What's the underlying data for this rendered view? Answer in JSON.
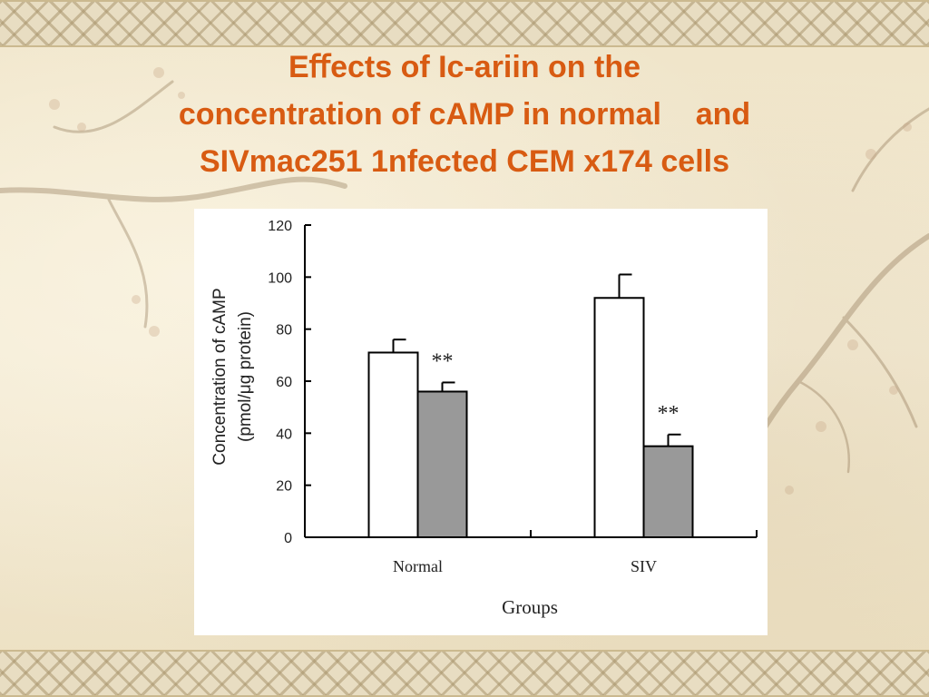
{
  "slide": {
    "title_lines": [
      "Eﬀects of Ic-ariin on the",
      "concentration of cAMP in normal    and",
      "SIVmac251 1nfected CEM x174 cells"
    ],
    "title_color": "#d85b12"
  },
  "chart_data": {
    "type": "bar",
    "categories": [
      "Normal",
      "SIV"
    ],
    "series": [
      {
        "values": [
          71,
          92
        ],
        "errors": [
          5,
          9
        ],
        "color": "#ffffff"
      },
      {
        "values": [
          56,
          35
        ],
        "errors": [
          3.5,
          4.5
        ],
        "color": "#999999",
        "annotations": [
          "**",
          "**"
        ]
      }
    ],
    "xlabel": "Groups",
    "ylabel": [
      "Concentration of cAMP",
      "(pmol/μg protein)"
    ],
    "ylim": [
      0,
      120
    ],
    "yticks": [
      "0",
      "20",
      "40",
      "60",
      "80",
      "100",
      "120"
    ],
    "grid": false
  }
}
